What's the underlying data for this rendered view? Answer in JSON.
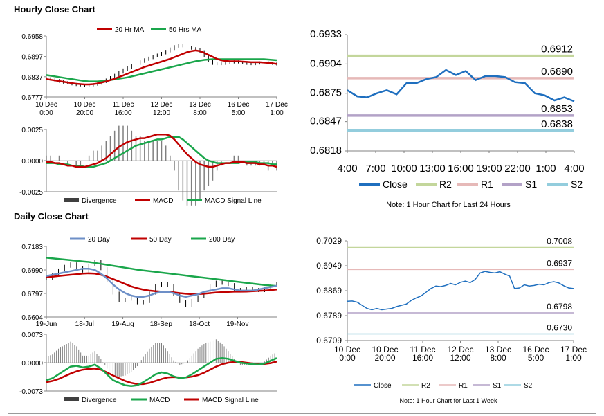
{
  "sections": {
    "hourly_title": "Hourly Close Chart",
    "daily_title": "Daily Close Chart"
  },
  "colors": {
    "close_blue": "#1f6fbf",
    "ma_red": "#c00000",
    "ma_green": "#1aa64b",
    "ma_blue": "#6d8fc7",
    "r2": "#c3d69b",
    "r1": "#e6b9b8",
    "s1": "#b3a2c7",
    "s2": "#93cddd",
    "hist": "#7f7f7f"
  },
  "chart_data": [
    {
      "id": "hourly-price",
      "type": "line",
      "title": "Hourly Close Chart",
      "legend": [
        "20 Hr MA",
        "50 Hrs MA"
      ],
      "yticks": [
        "0.6958",
        "0.6897",
        "0.6837",
        "0.6777"
      ],
      "ylim": [
        0.6777,
        0.6958
      ],
      "xticks": [
        [
          "10 Dec",
          "0:00"
        ],
        [
          "10 Dec",
          "20:00"
        ],
        [
          "11 Dec",
          "16:00"
        ],
        [
          "12 Dec",
          "12:00"
        ],
        [
          "13 Dec",
          "8:00"
        ],
        [
          "16 Dec",
          "5:00"
        ],
        [
          "17 Dec",
          "1:00"
        ]
      ],
      "close": [
        0.6832,
        0.6829,
        0.6826,
        0.6823,
        0.682,
        0.6818,
        0.6815,
        0.6813,
        0.6812,
        0.6811,
        0.6812,
        0.6814,
        0.6817,
        0.6822,
        0.6828,
        0.6835,
        0.6842,
        0.685,
        0.6858,
        0.6864,
        0.687,
        0.6876,
        0.6882,
        0.6888,
        0.6893,
        0.6898,
        0.6902,
        0.6907,
        0.6913,
        0.692,
        0.6927,
        0.6931,
        0.6928,
        0.6924,
        0.6921,
        0.6918,
        0.6912,
        0.6898,
        0.6884,
        0.6876,
        0.6875,
        0.6876,
        0.6878,
        0.688,
        0.6882,
        0.688,
        0.6878,
        0.6876,
        0.6875,
        0.6877,
        0.6879,
        0.688,
        0.6878,
        0.6876,
        0.6874
      ],
      "ma20": [
        0.683,
        0.6828,
        0.6826,
        0.6824,
        0.6822,
        0.682,
        0.6818,
        0.6816,
        0.6815,
        0.6814,
        0.6814,
        0.6815,
        0.6817,
        0.682,
        0.6823,
        0.6827,
        0.6831,
        0.6836,
        0.6841,
        0.6846,
        0.6851,
        0.6856,
        0.6861,
        0.6866,
        0.687,
        0.6874,
        0.6878,
        0.6882,
        0.6886,
        0.689,
        0.6895,
        0.69,
        0.6905,
        0.691,
        0.6913,
        0.6915,
        0.6913,
        0.6908,
        0.6902,
        0.6896,
        0.689,
        0.6886,
        0.6884,
        0.6883,
        0.6883,
        0.6883,
        0.6882,
        0.6881,
        0.688,
        0.688,
        0.688,
        0.6879,
        0.6878,
        0.6877,
        0.6875
      ],
      "ma50": [
        0.6842,
        0.684,
        0.6838,
        0.6836,
        0.6834,
        0.6832,
        0.683,
        0.6828,
        0.6826,
        0.6824,
        0.6823,
        0.6823,
        0.6823,
        0.6824,
        0.6825,
        0.6827,
        0.6829,
        0.6831,
        0.6833,
        0.6835,
        0.6838,
        0.6841,
        0.6844,
        0.6847,
        0.685,
        0.6853,
        0.6856,
        0.6859,
        0.6862,
        0.6865,
        0.6868,
        0.6871,
        0.6874,
        0.6877,
        0.688,
        0.6883,
        0.6885,
        0.6887,
        0.6888,
        0.6889,
        0.6889,
        0.6889,
        0.6889,
        0.6889,
        0.6889,
        0.6889,
        0.6889,
        0.6889,
        0.6889,
        0.6889,
        0.6889,
        0.6889,
        0.6888,
        0.6887,
        0.6886
      ]
    },
    {
      "id": "hourly-macd",
      "type": "line",
      "legend": [
        "Divergence",
        "MACD",
        "MACD Signal Line"
      ],
      "yticks": [
        "0.0025",
        "0.0000",
        "-0.0025"
      ],
      "ylim": [
        -0.0025,
        0.0025
      ],
      "macd": [
        -0.0001,
        -0.0001,
        -0.0002,
        -0.0002,
        -0.0003,
        -0.0004,
        -0.0004,
        -0.0005,
        -0.0005,
        -0.0005,
        -0.0004,
        -0.0003,
        -0.0002,
        0.0,
        0.0002,
        0.0005,
        0.0008,
        0.0011,
        0.0013,
        0.0015,
        0.0016,
        0.0017,
        0.0018,
        0.0018,
        0.0019,
        0.002,
        0.0021,
        0.0021,
        0.0021,
        0.002,
        0.0017,
        0.0013,
        0.0009,
        0.0005,
        0.0002,
        -0.0001,
        -0.0003,
        -0.0004,
        -0.0005,
        -0.0005,
        -0.0004,
        -0.0003,
        -0.0002,
        -0.0002,
        -0.0001,
        -0.0001,
        -0.0001,
        -0.0002,
        -0.0002,
        -0.0002,
        -0.0003,
        -0.0003,
        -0.0004,
        -0.0004,
        -0.0005
      ],
      "signal": [
        -0.0002,
        -0.0002,
        -0.0002,
        -0.0003,
        -0.0003,
        -0.0003,
        -0.0004,
        -0.0004,
        -0.0004,
        -0.0005,
        -0.0005,
        -0.0005,
        -0.0004,
        -0.0003,
        -0.0002,
        0.0,
        0.0002,
        0.0004,
        0.0006,
        0.0008,
        0.001,
        0.0012,
        0.0013,
        0.0014,
        0.0015,
        0.0016,
        0.0017,
        0.0017,
        0.0018,
        0.0019,
        0.0019,
        0.0019,
        0.0017,
        0.0014,
        0.0011,
        0.0008,
        0.0005,
        0.0002,
        0.0,
        -0.0001,
        -0.0002,
        -0.0002,
        -0.0002,
        -0.0002,
        -0.0002,
        -0.0002,
        -0.0001,
        -0.0001,
        -0.0001,
        -0.0001,
        -0.0002,
        -0.0002,
        -0.0002,
        -0.0003,
        -0.0003
      ]
    },
    {
      "id": "hourly-levels",
      "type": "line",
      "yticks": [
        "0.6933",
        "0.6904",
        "0.6875",
        "0.6847",
        "0.6818"
      ],
      "ylim": [
        0.6818,
        0.6933
      ],
      "xticks": [
        "4:00",
        "7:00",
        "10:00",
        "13:00",
        "16:00",
        "19:00",
        "22:00",
        "1:00",
        "4:00"
      ],
      "close": [
        0.6878,
        0.6872,
        0.6871,
        0.6875,
        0.6878,
        0.6874,
        0.6885,
        0.6885,
        0.6889,
        0.6891,
        0.6898,
        0.6893,
        0.6897,
        0.6888,
        0.6892,
        0.6892,
        0.6891,
        0.6886,
        0.6885,
        0.6875,
        0.6873,
        0.6868,
        0.6871,
        0.6867
      ],
      "levels": {
        "R2": 0.6912,
        "R1": 0.689,
        "S1": 0.6853,
        "S2": 0.6838
      },
      "level_labels": [
        "0.6912",
        "0.6890",
        "0.6853",
        "0.6838"
      ],
      "legend": [
        "Close",
        "R2",
        "R1",
        "S1",
        "S2"
      ],
      "note": "Note: 1 Hour Chart for Last 24 Hours"
    },
    {
      "id": "daily-price",
      "type": "line",
      "title": "Daily Close Chart",
      "legend": [
        "20 Day",
        "50 Day",
        "200 Day"
      ],
      "yticks": [
        "0.7183",
        "0.6990",
        "0.6797",
        "0.6604"
      ],
      "ylim": [
        0.6604,
        0.7183
      ],
      "xticks": [
        "19-Jun",
        "18-Jul",
        "19-Aug",
        "18-Sep",
        "18-Oct",
        "19-Nov"
      ],
      "close": [
        0.692,
        0.695,
        0.699,
        0.702,
        0.704,
        0.701,
        0.698,
        0.703,
        0.706,
        0.7,
        0.69,
        0.68,
        0.674,
        0.675,
        0.676,
        0.672,
        0.673,
        0.68,
        0.686,
        0.688,
        0.686,
        0.679,
        0.673,
        0.67,
        0.674,
        0.677,
        0.68,
        0.686,
        0.689,
        0.688,
        0.687,
        0.683,
        0.682,
        0.684,
        0.683,
        0.682,
        0.684,
        0.686,
        0.688
      ],
      "ma20": [
        0.694,
        0.695,
        0.696,
        0.697,
        0.698,
        0.699,
        0.7,
        0.7,
        0.699,
        0.696,
        0.692,
        0.687,
        0.683,
        0.68,
        0.678,
        0.677,
        0.677,
        0.678,
        0.68,
        0.681,
        0.681,
        0.68,
        0.678,
        0.677,
        0.678,
        0.679,
        0.681,
        0.682,
        0.683,
        0.684,
        0.684,
        0.683,
        0.682,
        0.682,
        0.682,
        0.683,
        0.684,
        0.685,
        0.686
      ],
      "ma50": [
        0.693,
        0.6935,
        0.694,
        0.6945,
        0.695,
        0.6955,
        0.696,
        0.6962,
        0.696,
        0.695,
        0.6935,
        0.6915,
        0.6895,
        0.6875,
        0.6855,
        0.684,
        0.6828,
        0.682,
        0.6815,
        0.6812,
        0.681,
        0.6806,
        0.68,
        0.6795,
        0.6792,
        0.6792,
        0.6795,
        0.68,
        0.6805,
        0.6808,
        0.681,
        0.6812,
        0.6812,
        0.6813,
        0.6815,
        0.6818,
        0.682,
        0.6825,
        0.683
      ],
      "ma200": [
        0.709,
        0.7085,
        0.708,
        0.7075,
        0.707,
        0.7065,
        0.706,
        0.7055,
        0.7048,
        0.704,
        0.7032,
        0.7024,
        0.7016,
        0.7008,
        0.7,
        0.6992,
        0.6986,
        0.698,
        0.6974,
        0.6968,
        0.6962,
        0.6956,
        0.695,
        0.6944,
        0.6938,
        0.6932,
        0.6926,
        0.692,
        0.6914,
        0.6908,
        0.6902,
        0.6896,
        0.689,
        0.6884,
        0.6878,
        0.6872,
        0.6866,
        0.6862,
        0.6858
      ]
    },
    {
      "id": "daily-macd",
      "type": "line",
      "legend": [
        "Divergence",
        "MACD",
        "MACD Signal Line"
      ],
      "yticks": [
        "0.0073",
        "0.0000",
        "-0.0073"
      ],
      "ylim": [
        -0.0073,
        0.0073
      ],
      "macd": [
        -0.0045,
        -0.004,
        -0.003,
        -0.002,
        -0.001,
        -0.0008,
        -0.0012,
        -0.001,
        -0.0005,
        -0.0015,
        -0.003,
        -0.0045,
        -0.0052,
        -0.0058,
        -0.006,
        -0.0058,
        -0.005,
        -0.004,
        -0.003,
        -0.0025,
        -0.0028,
        -0.0035,
        -0.004,
        -0.0038,
        -0.003,
        -0.002,
        -0.001,
        0.0,
        0.001,
        0.0012,
        0.001,
        0.0005,
        0.0,
        -0.0002,
        -0.0004,
        -0.0005,
        -0.0002,
        0.0005,
        0.0012
      ],
      "signal": [
        -0.005,
        -0.0047,
        -0.0042,
        -0.0035,
        -0.0028,
        -0.0022,
        -0.0018,
        -0.0016,
        -0.0015,
        -0.0018,
        -0.0025,
        -0.0033,
        -0.004,
        -0.0047,
        -0.0052,
        -0.0055,
        -0.0055,
        -0.0052,
        -0.0047,
        -0.0042,
        -0.0038,
        -0.0037,
        -0.0038,
        -0.0038,
        -0.0036,
        -0.0032,
        -0.0026,
        -0.0018,
        -0.001,
        -0.0004,
        0.0,
        0.0002,
        0.0002,
        0.0,
        -0.0002,
        -0.0003,
        -0.0003,
        -0.0001,
        0.0003
      ]
    },
    {
      "id": "daily-levels",
      "type": "line",
      "yticks": [
        "0.7029",
        "0.6949",
        "0.6869",
        "0.6789",
        "0.6709"
      ],
      "ylim": [
        0.6709,
        0.7029
      ],
      "xticks": [
        [
          "10 Dec",
          "0:00"
        ],
        [
          "10 Dec",
          "20:00"
        ],
        [
          "11 Dec",
          "16:00"
        ],
        [
          "12 Dec",
          "12:00"
        ],
        [
          "13 Dec",
          "8:00"
        ],
        [
          "16 Dec",
          "5:00"
        ],
        [
          "17 Dec",
          "1:00"
        ]
      ],
      "close": [
        0.6835,
        0.6836,
        0.6832,
        0.6822,
        0.6812,
        0.6808,
        0.6812,
        0.6808,
        0.681,
        0.6812,
        0.6818,
        0.6822,
        0.6826,
        0.6838,
        0.6846,
        0.6852,
        0.6864,
        0.6876,
        0.6884,
        0.6882,
        0.6886,
        0.6892,
        0.6888,
        0.6896,
        0.69,
        0.6895,
        0.6905,
        0.6926,
        0.6931,
        0.6928,
        0.6926,
        0.693,
        0.6922,
        0.6916,
        0.6876,
        0.6878,
        0.6888,
        0.6884,
        0.6886,
        0.689,
        0.6888,
        0.6895,
        0.6898,
        0.6894,
        0.6885,
        0.6878,
        0.6876
      ],
      "levels": {
        "R2": 0.7008,
        "R1": 0.6937,
        "S1": 0.6798,
        "S2": 0.673
      },
      "level_labels": [
        "0.7008",
        "0.6937",
        "0.6798",
        "0.6730"
      ],
      "legend": [
        "Close",
        "R2",
        "R1",
        "S1",
        "S2"
      ],
      "note": "Note: 1 Hour Chart for Last 1 Week"
    }
  ]
}
